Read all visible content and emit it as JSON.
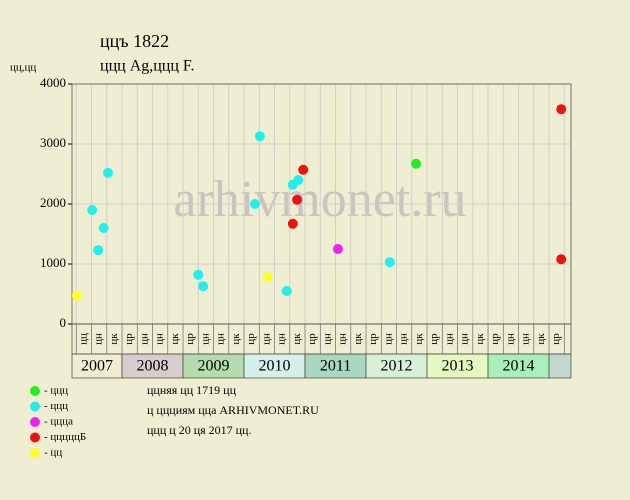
{
  "chart_data": {
    "type": "scatter",
    "title": "ццъ 1822",
    "subtitle": "ццц Ag,ццц F.",
    "y_label": "цц,цц",
    "watermark": "arhivmonet.ru",
    "notes": [
      "ццняя цц 1719 цц",
      "ц ццциям цца ARHIVMONET.RU",
      "ццц ц 20 ця 2017 цц."
    ],
    "xlim": [
      2007.18,
      2015.36
    ],
    "ylim": [
      0,
      4000
    ],
    "yticks": [
      0,
      1000,
      2000,
      3000,
      4000
    ],
    "grid": true,
    "xticks": [
      {
        "value": 2007,
        "label": "2007"
      },
      {
        "value": 2008,
        "label": "2008"
      },
      {
        "value": 2009,
        "label": "2009"
      },
      {
        "value": 2010,
        "label": "2010"
      },
      {
        "value": 2011,
        "label": "2011"
      },
      {
        "value": 2012,
        "label": "2012"
      },
      {
        "value": 2013,
        "label": "2013"
      },
      {
        "value": 2014,
        "label": "2014"
      },
      {
        "value": 2015,
        "label": null
      }
    ],
    "year_colors": [
      "#f0ecd0",
      "#d8cccc",
      "#b4dcac",
      "#d4f0e8",
      "#a8d8c0",
      "#d8f0d8",
      "#e4f8c0",
      "#a8f0b8",
      "#c4d8d0"
    ],
    "quarter_labels": [
      [
        null,
        "цц",
        "цн",
        "цк"
      ],
      [
        "цр",
        "цн",
        "цн",
        "цк"
      ],
      [
        "цр",
        "цн",
        "цн",
        "цк"
      ],
      [
        "цр",
        "цн",
        "цн",
        "цк"
      ],
      [
        "цр",
        "цн",
        "цн",
        "цк"
      ],
      [
        "цр",
        "цн",
        "цн",
        "цк"
      ],
      [
        "цр",
        "цн",
        "цн",
        "цк"
      ],
      [
        "цр",
        "цн",
        "цн",
        "цк"
      ],
      [
        "цр"
      ]
    ],
    "series": [
      {
        "name": "- ццц",
        "color": "#22ee22",
        "x": [
          2012.82
        ],
        "values": [
          2670
        ]
      },
      {
        "name": "- ццц",
        "color": "#22eeee",
        "x": [
          2007.51,
          2007.61,
          2007.7,
          2007.77,
          2009.25,
          2009.33,
          2010.18,
          2010.26,
          2010.7,
          2010.8,
          2010.89,
          2012.39
        ],
        "values": [
          1900,
          1230,
          1600,
          2520,
          820,
          630,
          2000,
          3130,
          550,
          2320,
          2400,
          1030
        ]
      },
      {
        "name": "- ццца",
        "color": "#ee22ee",
        "x": [
          2011.54
        ],
        "values": [
          1250
        ]
      },
      {
        "name": "- цццццБ",
        "color": "#ee1111",
        "x": [
          2010.8,
          2010.87,
          2010.97,
          2015.2,
          2015.2
        ],
        "values": [
          1670,
          2070,
          2570,
          3580,
          1080
        ]
      },
      {
        "name": "- цц",
        "color": "#ffff22",
        "x": [
          2007.26,
          2010.39
        ],
        "values": [
          470,
          780
        ]
      }
    ]
  }
}
